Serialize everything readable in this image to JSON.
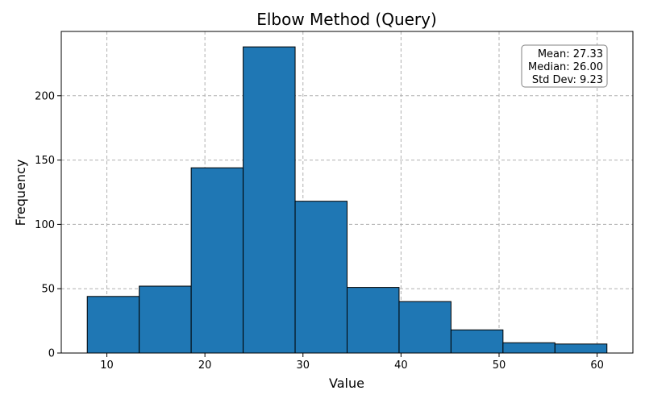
{
  "chart_data": {
    "type": "bar",
    "title": "Elbow Method (Query)",
    "xlabel": "Value",
    "ylabel": "Frequency",
    "xlim": [
      5.35,
      63.65
    ],
    "ylim": [
      0,
      250
    ],
    "x_ticks": [
      10,
      20,
      30,
      40,
      50,
      60
    ],
    "y_ticks": [
      0,
      50,
      100,
      150,
      200
    ],
    "grid": true,
    "bins": [
      {
        "start": 8.0,
        "end": 13.3,
        "count": 44
      },
      {
        "start": 13.3,
        "end": 18.6,
        "count": 52
      },
      {
        "start": 18.6,
        "end": 23.9,
        "count": 144
      },
      {
        "start": 23.9,
        "end": 29.2,
        "count": 238
      },
      {
        "start": 29.2,
        "end": 34.5,
        "count": 118
      },
      {
        "start": 34.5,
        "end": 39.8,
        "count": 51
      },
      {
        "start": 39.8,
        "end": 45.1,
        "count": 40
      },
      {
        "start": 45.1,
        "end": 50.4,
        "count": 18
      },
      {
        "start": 50.4,
        "end": 55.7,
        "count": 8
      },
      {
        "start": 55.7,
        "end": 61.0,
        "count": 7
      }
    ],
    "bar_color": "#1f77b4",
    "bar_edge_color": "#000000",
    "grid_color": "#b0b0b0",
    "stats_box": {
      "placement": "top-right",
      "lines": [
        "Mean: 27.33",
        "Median: 26.00",
        "Std Dev: 9.23"
      ]
    }
  }
}
